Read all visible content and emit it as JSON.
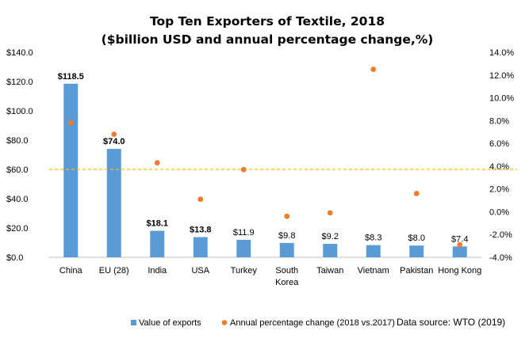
{
  "chart_data": {
    "type": "bar",
    "title": "Top Ten Exporters of Textile, 2018",
    "subtitle": "($billion USD and annual percentage change,%)",
    "categories": [
      [
        "China"
      ],
      [
        "EU (28)"
      ],
      [
        "India"
      ],
      [
        "USA"
      ],
      [
        "Turkey"
      ],
      [
        "South",
        "Korea"
      ],
      [
        "Taiwan"
      ],
      [
        "Vietnam"
      ],
      [
        "Pakistan"
      ],
      [
        "Hong Kong"
      ]
    ],
    "series": [
      {
        "name": "Value of exports",
        "type": "bar",
        "axis": "left",
        "color": "#5b9bd5",
        "values": [
          118.5,
          74.0,
          18.1,
          13.8,
          11.9,
          9.8,
          9.2,
          8.3,
          8.0,
          7.4
        ],
        "labels": [
          "$118.5",
          "$74.0",
          "$18.1",
          "$13.8",
          "$11.9",
          "$9.8",
          "$9.2",
          "$8.3",
          "$8.0",
          "$7.4"
        ],
        "label_bold": [
          true,
          true,
          true,
          true,
          false,
          false,
          false,
          false,
          false,
          false
        ]
      },
      {
        "name": "Annual percentage change (2018 vs.2017)",
        "type": "scatter",
        "axis": "right",
        "color": "#ed7d31",
        "values": [
          7.8,
          6.8,
          4.3,
          1.1,
          3.7,
          -0.4,
          -0.1,
          12.5,
          1.6,
          -2.9
        ]
      }
    ],
    "y_left": {
      "min": 0,
      "max": 140,
      "step": 20,
      "tick_labels": [
        "$0.0",
        "$20.0",
        "$40.0",
        "$60.0",
        "$80.0",
        "$100.0",
        "$120.0",
        "$140.0"
      ]
    },
    "y_right": {
      "min": -4,
      "max": 14,
      "step": 2,
      "tick_labels": [
        "-4.0%",
        "-2.0%",
        "0.0%",
        "2.0%",
        "4.0%",
        "6.0%",
        "8.0%",
        "10.0%",
        "12.0%",
        "14.0%"
      ]
    },
    "reference_line": {
      "axis": "left",
      "value": 60,
      "color": "#ffc000",
      "style": "dashed"
    },
    "legend": {
      "position": "bottom-left",
      "items": [
        "Value of exports",
        "Annual percentage change (2018 vs.2017)"
      ]
    },
    "grid": false
  },
  "source_note": "Data source: WTO (2019)"
}
